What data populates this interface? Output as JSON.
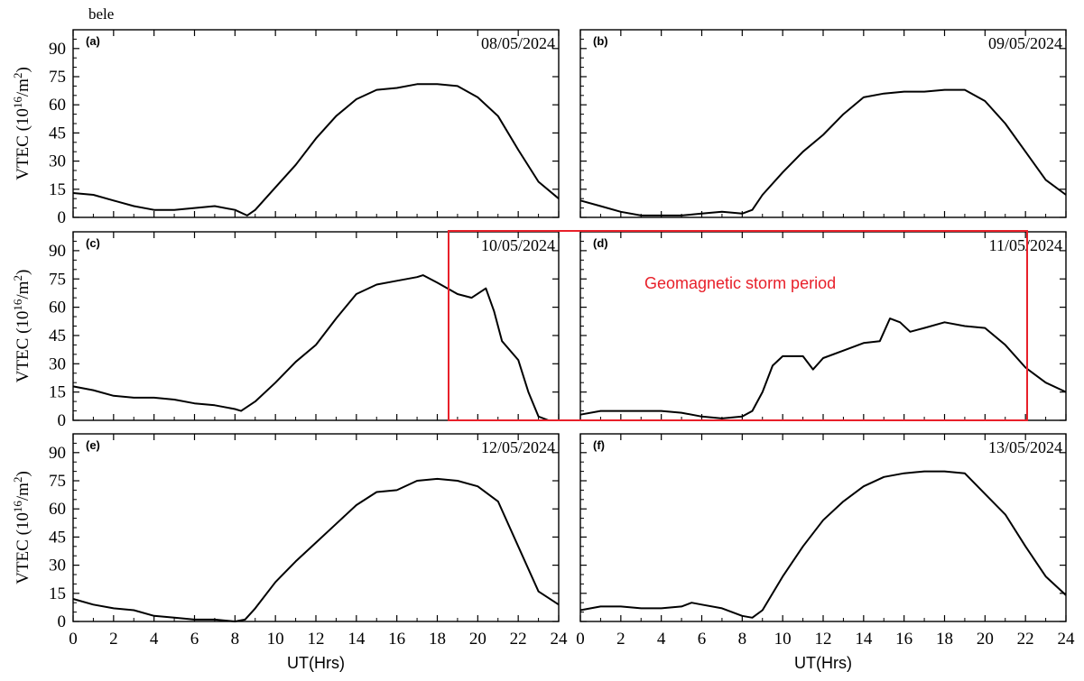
{
  "corner_label": "bele",
  "storm_label": "Geomagnetic storm period",
  "storm_color": "#e8202a",
  "line_color": "#000000",
  "chart_data": [
    {
      "type": "line",
      "panel": "(a)",
      "date": "08/05/2024",
      "xlabel": "",
      "ylabel": "VTEC (10^16/m^2)",
      "xlim": [
        0,
        24
      ],
      "ylim": [
        0,
        100
      ],
      "xticks": [
        0,
        2,
        4,
        6,
        8,
        10,
        12,
        14,
        16,
        18,
        20,
        22,
        24
      ],
      "yticks": [
        0,
        15,
        30,
        45,
        60,
        75,
        90
      ],
      "x": [
        0,
        1,
        2,
        3,
        4,
        5,
        6,
        7,
        8,
        8.6,
        9,
        9.5,
        10,
        11,
        12,
        13,
        14,
        15,
        16,
        17,
        18,
        19,
        20,
        21,
        22,
        23,
        24
      ],
      "y": [
        13,
        12,
        9,
        6,
        4,
        4,
        5,
        6,
        4,
        1,
        4,
        10,
        16,
        28,
        42,
        54,
        63,
        68,
        69,
        71,
        71,
        70,
        64,
        54,
        36,
        19,
        10
      ]
    },
    {
      "type": "line",
      "panel": "(b)",
      "date": "09/05/2024",
      "xlabel": "",
      "ylabel": "",
      "xlim": [
        0,
        24
      ],
      "ylim": [
        0,
        100
      ],
      "xticks": [
        0,
        2,
        4,
        6,
        8,
        10,
        12,
        14,
        16,
        18,
        20,
        22,
        24
      ],
      "yticks": [
        0,
        15,
        30,
        45,
        60,
        75,
        90
      ],
      "x": [
        0,
        1,
        2,
        3,
        4,
        5,
        6,
        7,
        8,
        8.5,
        9,
        10,
        11,
        12,
        13,
        14,
        15,
        16,
        17,
        18,
        18.5,
        19,
        20,
        21,
        22,
        23,
        24
      ],
      "y": [
        9,
        6,
        3,
        1,
        1,
        1,
        2,
        3,
        2,
        4,
        12,
        24,
        35,
        44,
        55,
        64,
        66,
        67,
        67,
        68,
        68,
        68,
        62,
        50,
        35,
        20,
        12
      ]
    },
    {
      "type": "line",
      "panel": "(c)",
      "date": "10/05/2024",
      "xlabel": "",
      "ylabel": "VTEC (10^16/m^2)",
      "xlim": [
        0,
        24
      ],
      "ylim": [
        0,
        100
      ],
      "xticks": [
        0,
        2,
        4,
        6,
        8,
        10,
        12,
        14,
        16,
        18,
        20,
        22,
        24
      ],
      "yticks": [
        0,
        15,
        30,
        45,
        60,
        75,
        90
      ],
      "x": [
        0,
        1,
        2,
        3,
        4,
        5,
        6,
        7,
        8,
        8.3,
        9,
        10,
        11,
        12,
        13,
        14,
        15,
        16,
        17,
        17.3,
        18,
        19,
        19.7,
        20.4,
        20.8,
        21.2,
        22,
        22.5,
        23,
        23.5,
        24
      ],
      "y": [
        18,
        16,
        13,
        12,
        12,
        11,
        9,
        8,
        6,
        5,
        10,
        20,
        31,
        40,
        54,
        67,
        72,
        74,
        76,
        77,
        73,
        67,
        65,
        70,
        58,
        42,
        32,
        15,
        2,
        0,
        0
      ]
    },
    {
      "type": "line",
      "panel": "(d)",
      "date": "11/05/2024",
      "xlabel": "",
      "ylabel": "",
      "xlim": [
        0,
        24
      ],
      "ylim": [
        0,
        100
      ],
      "xticks": [
        0,
        2,
        4,
        6,
        8,
        10,
        12,
        14,
        16,
        18,
        20,
        22,
        24
      ],
      "yticks": [
        0,
        15,
        30,
        45,
        60,
        75,
        90
      ],
      "x": [
        0,
        1,
        2,
        3,
        4,
        5,
        6,
        7,
        8,
        8.5,
        9,
        9.5,
        10,
        10.5,
        11,
        11.5,
        12,
        13,
        14,
        14.8,
        15.3,
        15.8,
        16.3,
        17,
        18,
        19,
        20,
        21,
        22,
        23,
        24
      ],
      "y": [
        3,
        5,
        5,
        5,
        5,
        4,
        2,
        1,
        2,
        5,
        15,
        29,
        34,
        34,
        34,
        27,
        33,
        37,
        41,
        42,
        54,
        52,
        47,
        49,
        52,
        50,
        49,
        40,
        28,
        20,
        15
      ]
    },
    {
      "type": "line",
      "panel": "(e)",
      "date": "12/05/2024",
      "xlabel": "UT(Hrs)",
      "ylabel": "VTEC (10^16/m^2)",
      "xlim": [
        0,
        24
      ],
      "ylim": [
        0,
        100
      ],
      "xticks": [
        0,
        2,
        4,
        6,
        8,
        10,
        12,
        14,
        16,
        18,
        20,
        22,
        24
      ],
      "yticks": [
        0,
        15,
        30,
        45,
        60,
        75,
        90
      ],
      "x": [
        0,
        1,
        2,
        3,
        4,
        5,
        6,
        7,
        8,
        8.5,
        9,
        10,
        11,
        12,
        13,
        14,
        15,
        16,
        17,
        18,
        19,
        20,
        21,
        22,
        23,
        24
      ],
      "y": [
        12,
        9,
        7,
        6,
        3,
        2,
        1,
        1,
        0,
        1,
        7,
        21,
        32,
        42,
        52,
        62,
        69,
        70,
        75,
        76,
        75,
        72,
        64,
        40,
        16,
        9
      ]
    },
    {
      "type": "line",
      "panel": "(f)",
      "date": "13/05/2024",
      "xlabel": "UT(Hrs)",
      "ylabel": "",
      "xlim": [
        0,
        24
      ],
      "ylim": [
        0,
        100
      ],
      "xticks": [
        0,
        2,
        4,
        6,
        8,
        10,
        12,
        14,
        16,
        18,
        20,
        22,
        24
      ],
      "yticks": [
        0,
        15,
        30,
        45,
        60,
        75,
        90
      ],
      "x": [
        0,
        1,
        2,
        3,
        4,
        5,
        5.5,
        6,
        7,
        8,
        8.5,
        9,
        10,
        11,
        12,
        13,
        14,
        15,
        16,
        17,
        18,
        19,
        20,
        21,
        22,
        23,
        24
      ],
      "y": [
        6,
        8,
        8,
        7,
        7,
        8,
        10,
        9,
        7,
        3,
        2,
        6,
        24,
        40,
        54,
        64,
        72,
        77,
        79,
        80,
        80,
        79,
        68,
        57,
        40,
        24,
        14
      ]
    }
  ]
}
